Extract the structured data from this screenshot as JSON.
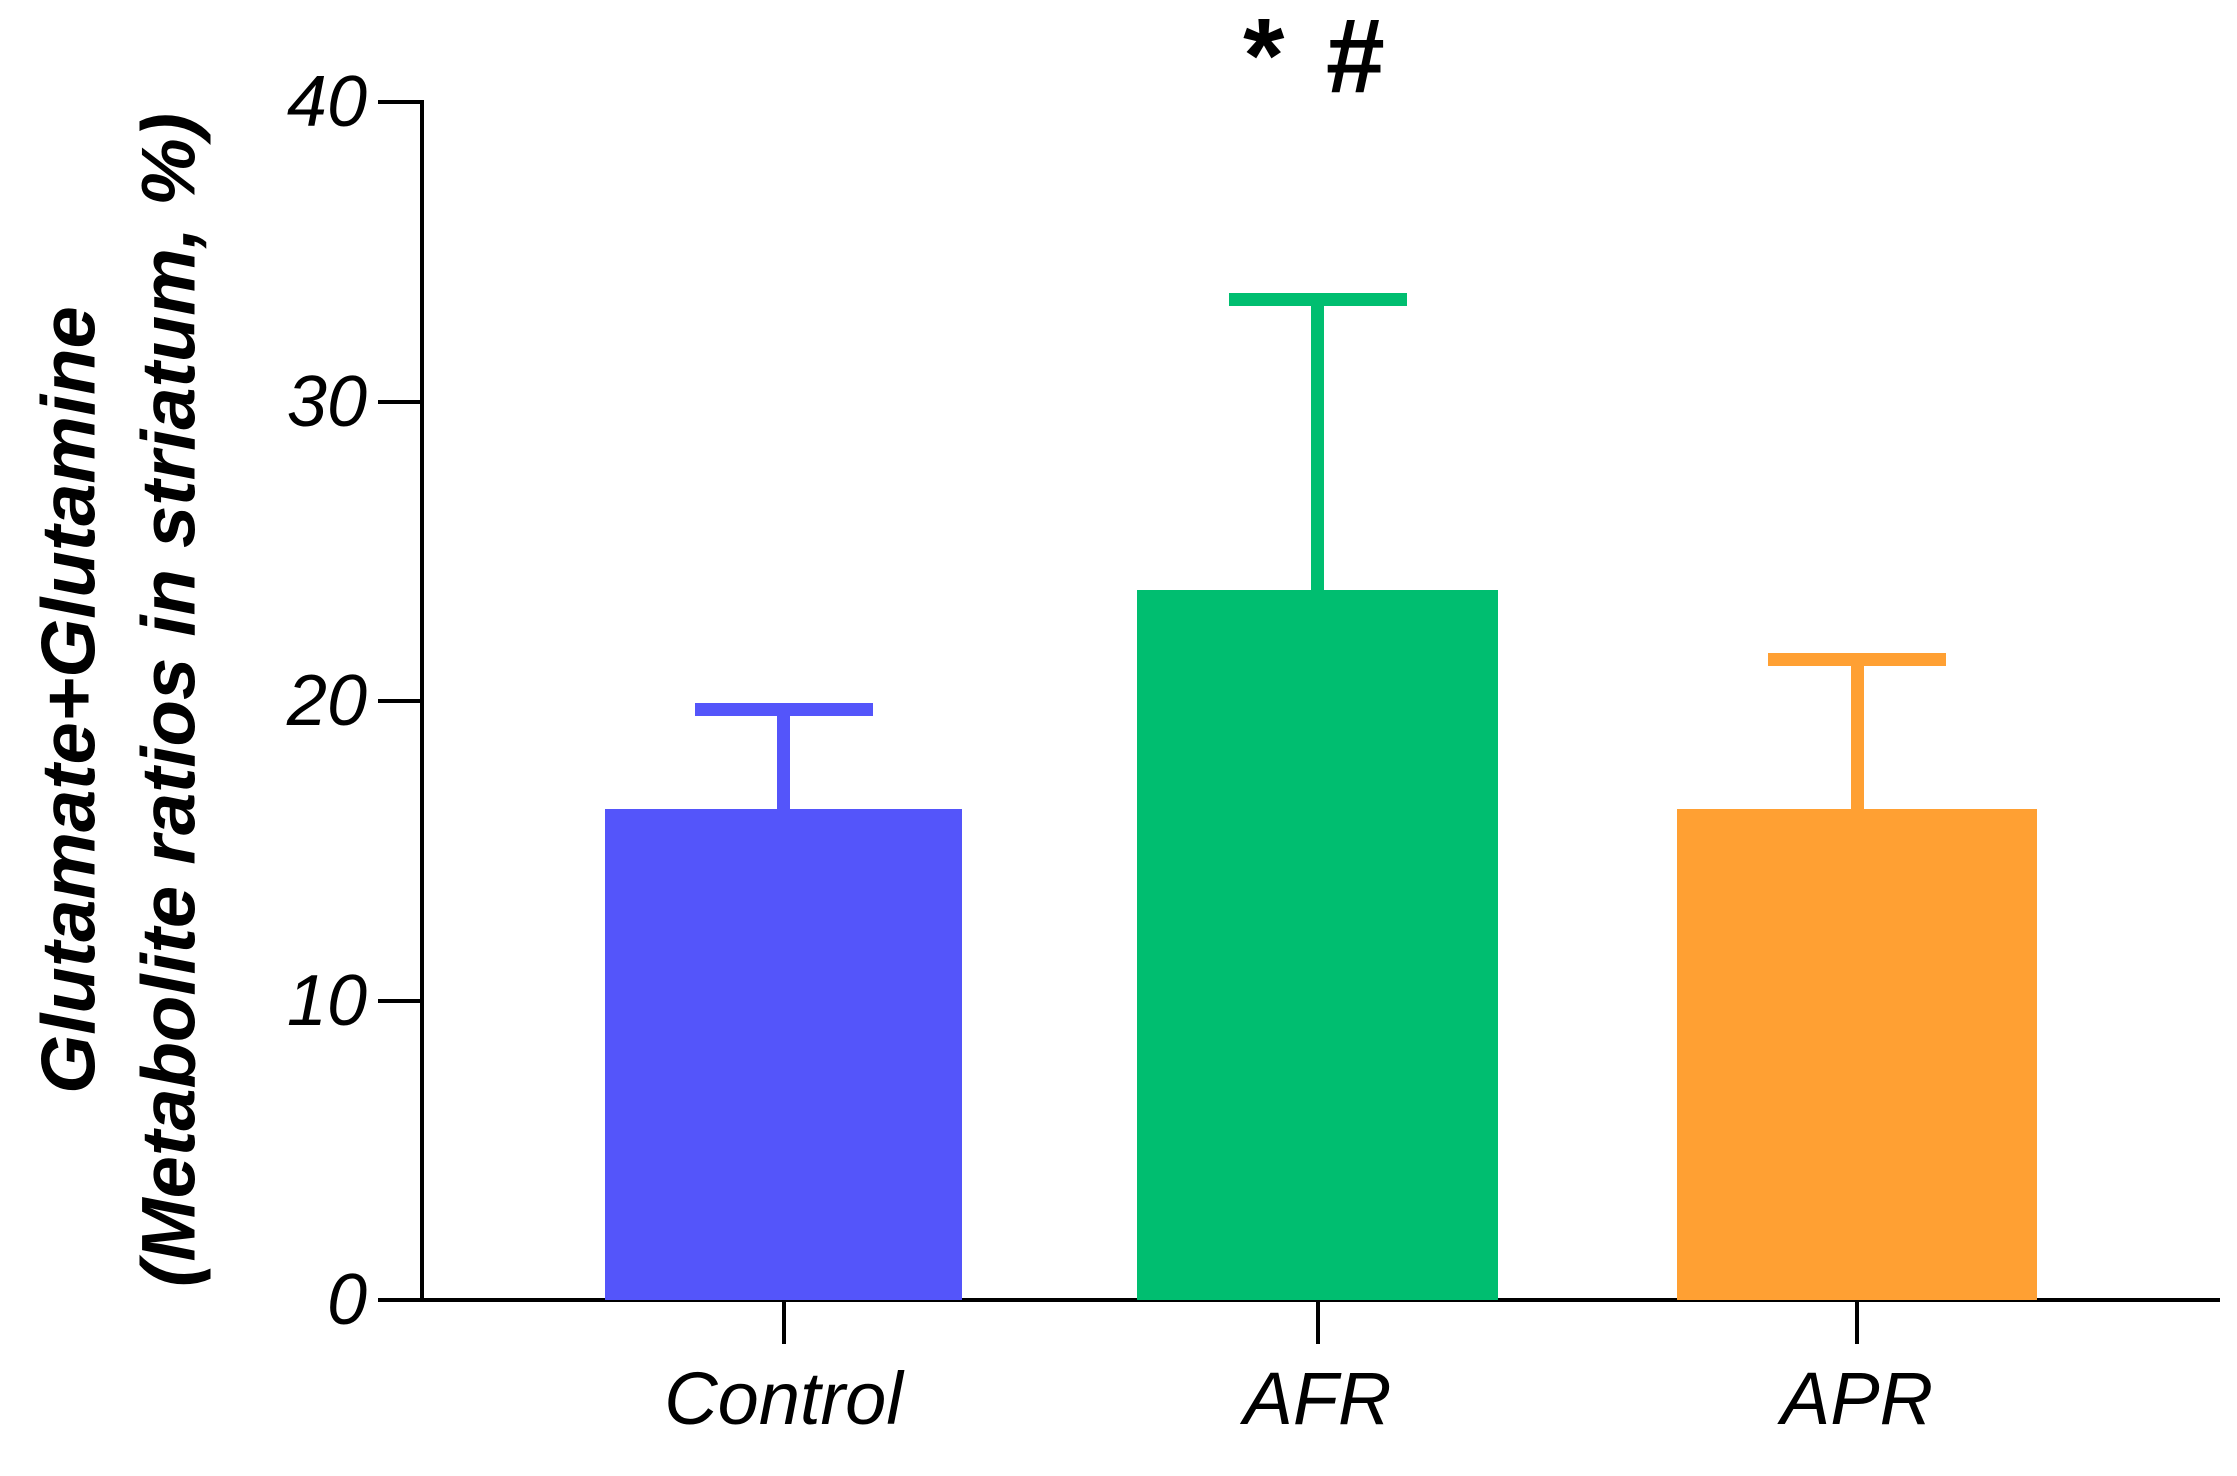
{
  "chart_data": {
    "type": "bar",
    "title": "",
    "xlabel": "",
    "ylabel_line1": "Glutamate+Glutamine",
    "ylabel_line2": "(Metabolite ratios in striatum, %)",
    "categories": [
      "Control",
      "AFR",
      "APR"
    ],
    "values": [
      16.4,
      23.7,
      16.4
    ],
    "errors_plus": [
      3.3,
      9.7,
      5.0
    ],
    "bar_colors": [
      "#5455fa",
      "#00be70",
      "#ffa033"
    ],
    "axis_color": "#000000",
    "yticks": [
      0,
      10,
      20,
      30,
      40
    ],
    "ytick_labels": [
      "0",
      "10",
      "20",
      "30",
      "40"
    ],
    "ylim": [
      0,
      40
    ],
    "grid": false,
    "legend": false,
    "annotation": {
      "text": "* #",
      "above_category": "AFR"
    }
  }
}
